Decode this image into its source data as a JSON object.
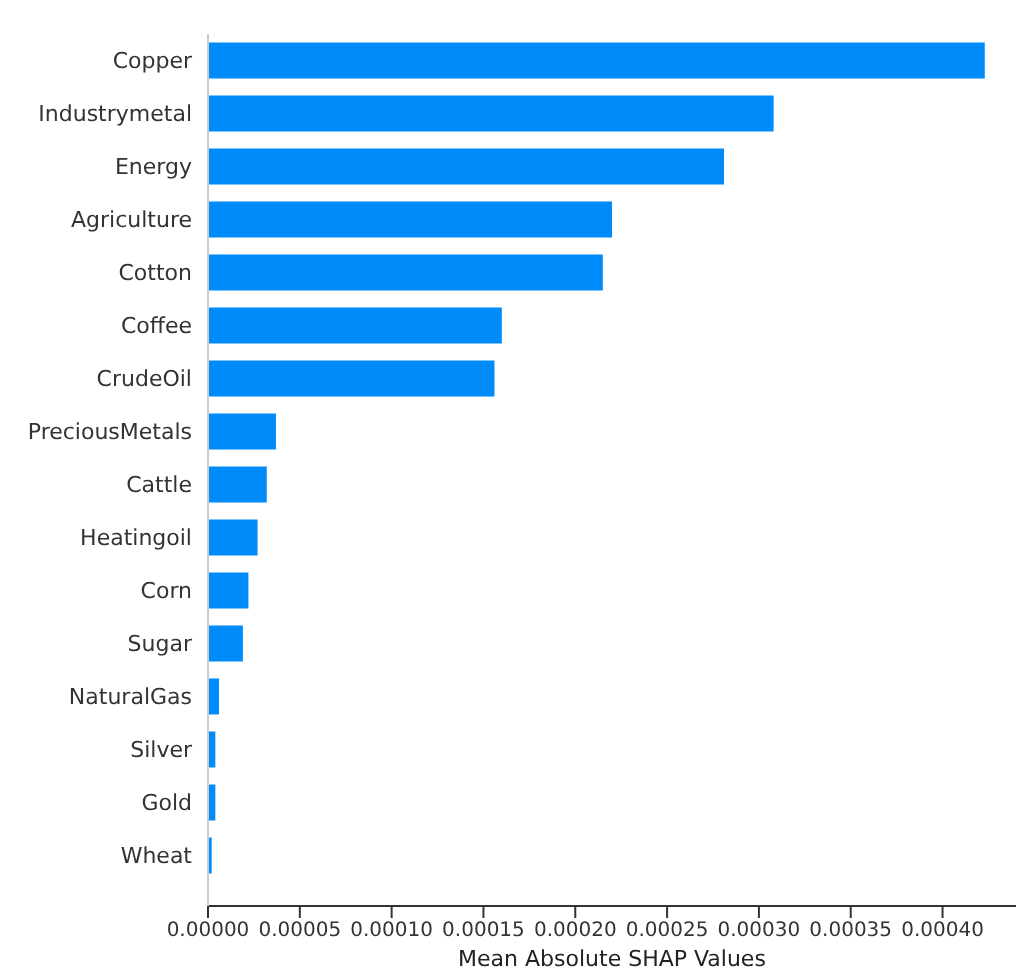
{
  "chart_data": {
    "type": "bar",
    "orientation": "horizontal",
    "xlabel": "Mean Absolute SHAP Values",
    "categories": [
      "Copper",
      "Industrymetal",
      "Energy",
      "Agriculture",
      "Cotton",
      "Coffee",
      "CrudeOil",
      "PreciousMetals",
      "Cattle",
      "Heatingoil",
      "Corn",
      "Sugar",
      "NaturalGas",
      "Silver",
      "Gold",
      "Wheat"
    ],
    "values": [
      0.000423,
      0.000308,
      0.000281,
      0.00022,
      0.000215,
      0.00016,
      0.000156,
      3.7e-05,
      3.2e-05,
      2.7e-05,
      2.2e-05,
      1.9e-05,
      6e-06,
      4e-06,
      4e-06,
      2e-06
    ],
    "color": "#008bfb",
    "xlim": [
      0,
      0.00044
    ],
    "xticks": [
      {
        "value": 0,
        "label": "0.00000"
      },
      {
        "value": 5e-05,
        "label": "0.00005"
      },
      {
        "value": 0.0001,
        "label": "0.00010"
      },
      {
        "value": 0.00015,
        "label": "0.00015"
      },
      {
        "value": 0.0002,
        "label": "0.00020"
      },
      {
        "value": 0.00025,
        "label": "0.00025"
      },
      {
        "value": 0.0003,
        "label": "0.00030"
      },
      {
        "value": 0.00035,
        "label": "0.00035"
      },
      {
        "value": 0.0004,
        "label": "0.00040"
      }
    ],
    "grid": false,
    "legend": false
  }
}
